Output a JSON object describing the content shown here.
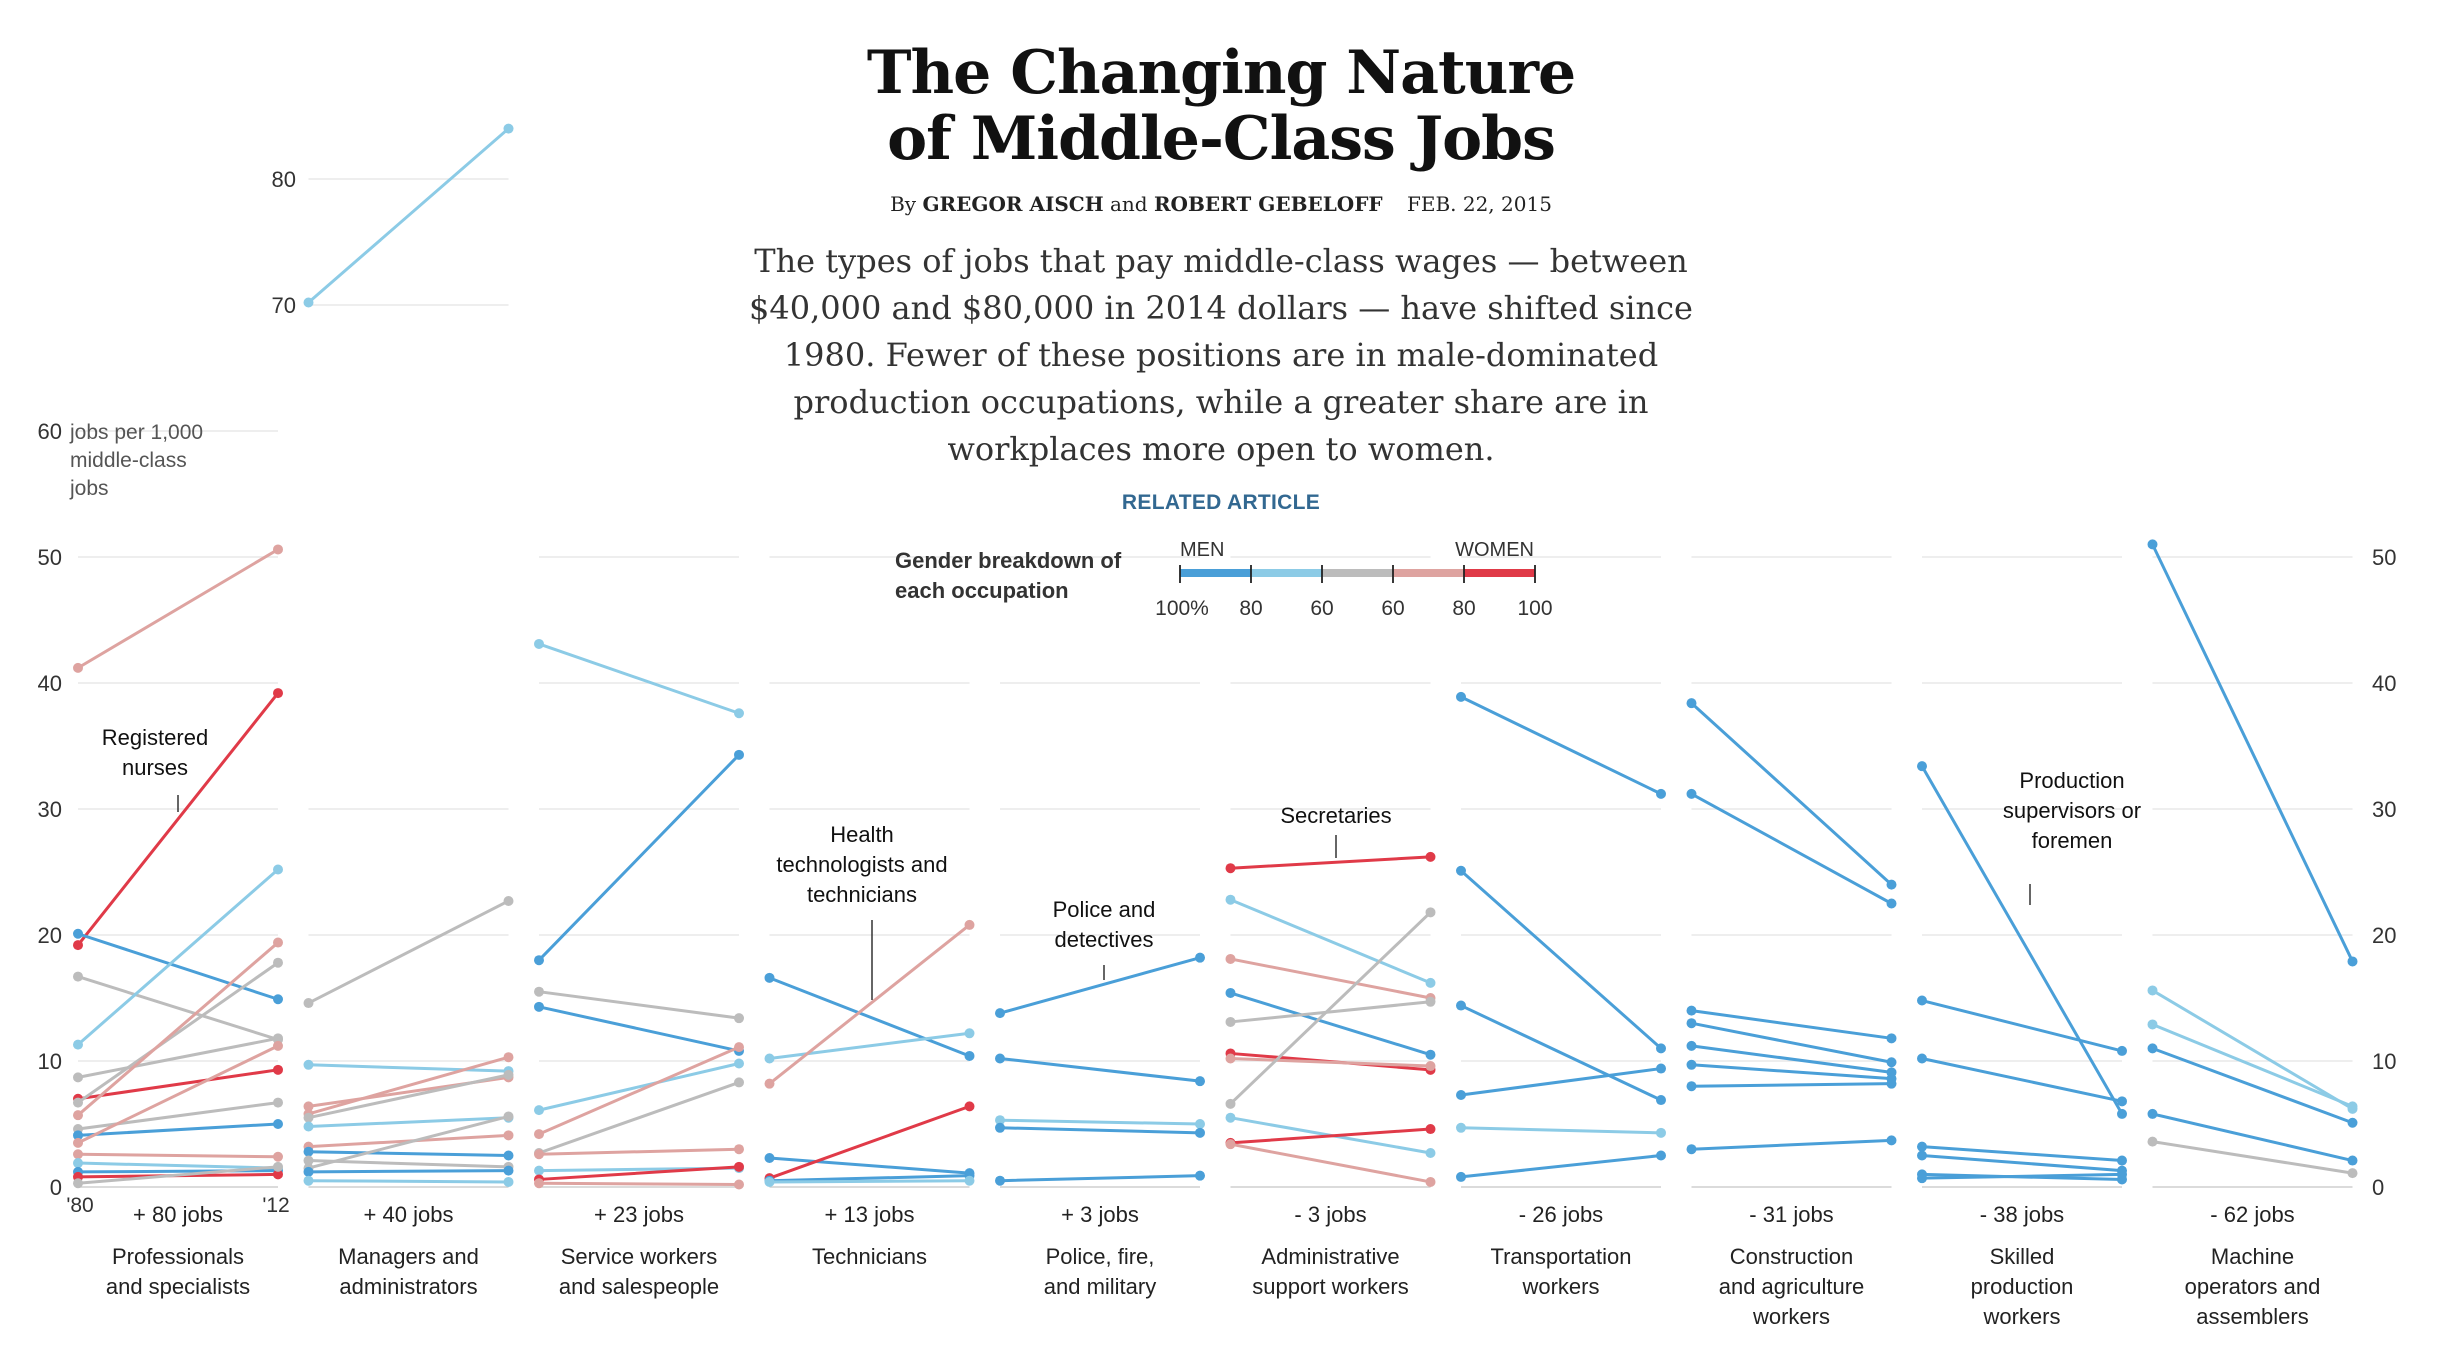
{
  "header": {
    "title_line1": "The Changing Nature",
    "title_line2": "of Middle-Class Jobs",
    "byline_prefix": "By",
    "author1": "GREGOR AISCH",
    "byline_and": "and",
    "author2": "ROBERT GEBELOFF",
    "date": "FEB. 22, 2015",
    "summary": "The types of jobs that pay middle-class wages — between $40,000 and $80,000 in 2014 dollars — have shifted since 1980. Fewer of these positions are in male-dominated production occupations, while a greater share are in workplaces more open to women.",
    "related_link": "RELATED ARTICLE"
  },
  "legend": {
    "title_line1": "Gender breakdown of",
    "title_line2": "each occupation",
    "men_label": "MEN",
    "women_label": "WOMEN",
    "ticks": [
      "100%",
      "80",
      "60",
      "60",
      "80",
      "100"
    ],
    "colors": [
      "#4a9fd8",
      "#8ccbe6",
      "#bcbcbc",
      "#dea3a0",
      "#e03a48"
    ]
  },
  "colors": {
    "men_strong": "#4a9fd8",
    "men_light": "#8ccbe6",
    "neutral": "#bcbcbc",
    "women_light": "#dea3a0",
    "women_strong": "#e03a48"
  },
  "chart_data": {
    "type": "line",
    "unit_label_lines": [
      "jobs per 1,000",
      "middle-class",
      "jobs"
    ],
    "x": [
      "'80",
      "'12"
    ],
    "ylim": [
      0,
      85
    ],
    "yticks_left": [
      "0",
      "10",
      "20",
      "30",
      "40",
      "50",
      "60",
      "70",
      "80"
    ],
    "yticks_right": [
      "0",
      "10",
      "20",
      "30",
      "40",
      "50"
    ],
    "grid": true,
    "panels": [
      {
        "name_lines": [
          "Professionals",
          "and specialists"
        ],
        "change": "+ 80 jobs",
        "series": [
          {
            "values": [
              41.2,
              50.6
            ],
            "gender": "women_light"
          },
          {
            "values": [
              19.2,
              39.2
            ],
            "gender": "women_strong"
          },
          {
            "values": [
              20.1,
              14.9
            ],
            "gender": "men_strong"
          },
          {
            "values": [
              16.7,
              11.7
            ],
            "gender": "neutral"
          },
          {
            "values": [
              11.3,
              25.2
            ],
            "gender": "men_light"
          },
          {
            "values": [
              8.7,
              11.8
            ],
            "gender": "neutral"
          },
          {
            "values": [
              7.0,
              9.3
            ],
            "gender": "women_strong"
          },
          {
            "values": [
              6.7,
              17.8
            ],
            "gender": "neutral"
          },
          {
            "values": [
              5.7,
              19.4
            ],
            "gender": "women_light"
          },
          {
            "values": [
              4.6,
              6.7
            ],
            "gender": "neutral"
          },
          {
            "values": [
              4.1,
              5.0
            ],
            "gender": "men_strong"
          },
          {
            "values": [
              3.5,
              11.2
            ],
            "gender": "women_light"
          },
          {
            "values": [
              2.6,
              2.4
            ],
            "gender": "women_light"
          },
          {
            "values": [
              1.9,
              1.5
            ],
            "gender": "men_light"
          },
          {
            "values": [
              1.2,
              1.3
            ],
            "gender": "men_strong"
          },
          {
            "values": [
              0.8,
              1.0
            ],
            "gender": "women_strong"
          },
          {
            "values": [
              0.3,
              1.6
            ],
            "gender": "neutral"
          }
        ],
        "annotation_lines": [
          "Registered",
          "nurses"
        ]
      },
      {
        "name_lines": [
          "Managers and",
          "administrators"
        ],
        "change": "+ 40 jobs",
        "series": [
          {
            "values": [
              70.2,
              84.0
            ],
            "gender": "men_light"
          },
          {
            "values": [
              14.6,
              22.7
            ],
            "gender": "neutral"
          },
          {
            "values": [
              9.7,
              9.2
            ],
            "gender": "men_light"
          },
          {
            "values": [
              6.4,
              8.7
            ],
            "gender": "women_light"
          },
          {
            "values": [
              5.8,
              10.3
            ],
            "gender": "women_light"
          },
          {
            "values": [
              5.5,
              8.9
            ],
            "gender": "neutral"
          },
          {
            "values": [
              4.8,
              5.5
            ],
            "gender": "men_light"
          },
          {
            "values": [
              3.2,
              4.1
            ],
            "gender": "women_light"
          },
          {
            "values": [
              2.8,
              2.5
            ],
            "gender": "men_strong"
          },
          {
            "values": [
              2.1,
              1.6
            ],
            "gender": "neutral"
          },
          {
            "values": [
              1.5,
              5.6
            ],
            "gender": "neutral"
          },
          {
            "values": [
              1.2,
              1.3
            ],
            "gender": "men_strong"
          },
          {
            "values": [
              0.5,
              0.4
            ],
            "gender": "men_light"
          }
        ]
      },
      {
        "name_lines": [
          "Service workers",
          "and salespeople"
        ],
        "change": "+ 23 jobs",
        "series": [
          {
            "values": [
              43.1,
              37.6
            ],
            "gender": "men_light"
          },
          {
            "values": [
              18.0,
              34.3
            ],
            "gender": "men_strong"
          },
          {
            "values": [
              15.5,
              13.4
            ],
            "gender": "neutral"
          },
          {
            "values": [
              14.3,
              10.8
            ],
            "gender": "men_strong"
          },
          {
            "values": [
              6.1,
              9.8
            ],
            "gender": "men_light"
          },
          {
            "values": [
              4.2,
              11.1
            ],
            "gender": "women_light"
          },
          {
            "values": [
              2.7,
              8.3
            ],
            "gender": "neutral"
          },
          {
            "values": [
              2.6,
              3.0
            ],
            "gender": "women_light"
          },
          {
            "values": [
              1.3,
              1.5
            ],
            "gender": "men_light"
          },
          {
            "values": [
              0.6,
              1.6
            ],
            "gender": "women_strong"
          },
          {
            "values": [
              0.3,
              0.2
            ],
            "gender": "women_light"
          }
        ]
      },
      {
        "name_lines": [
          "Technicians"
        ],
        "change": "+ 13 jobs",
        "series": [
          {
            "values": [
              16.6,
              10.4
            ],
            "gender": "men_strong"
          },
          {
            "values": [
              10.2,
              12.2
            ],
            "gender": "men_light"
          },
          {
            "values": [
              8.2,
              20.8
            ],
            "gender": "women_light"
          },
          {
            "values": [
              2.3,
              1.1
            ],
            "gender": "men_strong"
          },
          {
            "values": [
              0.7,
              6.4
            ],
            "gender": "women_strong"
          },
          {
            "values": [
              0.5,
              0.9
            ],
            "gender": "men_strong"
          },
          {
            "values": [
              0.4,
              0.5
            ],
            "gender": "men_light"
          }
        ],
        "annotation_lines": [
          "Health",
          "technologists and",
          "technicians"
        ]
      },
      {
        "name_lines": [
          "Police, fire,",
          "and military"
        ],
        "change": "+ 3 jobs",
        "series": [
          {
            "values": [
              13.8,
              18.2
            ],
            "gender": "men_strong"
          },
          {
            "values": [
              10.2,
              8.4
            ],
            "gender": "men_strong"
          },
          {
            "values": [
              5.3,
              5.0
            ],
            "gender": "men_light"
          },
          {
            "values": [
              4.7,
              4.3
            ],
            "gender": "men_strong"
          },
          {
            "values": [
              0.5,
              0.9
            ],
            "gender": "men_strong"
          }
        ],
        "annotation_lines": [
          "Police and",
          "detectives"
        ]
      },
      {
        "name_lines": [
          "Administrative",
          "support workers"
        ],
        "change": "- 3 jobs",
        "series": [
          {
            "values": [
              25.3,
              26.2
            ],
            "gender": "women_strong"
          },
          {
            "values": [
              22.8,
              16.2
            ],
            "gender": "men_light"
          },
          {
            "values": [
              18.1,
              15.0
            ],
            "gender": "women_light"
          },
          {
            "values": [
              15.4,
              10.5
            ],
            "gender": "men_strong"
          },
          {
            "values": [
              13.1,
              14.7
            ],
            "gender": "neutral"
          },
          {
            "values": [
              10.6,
              9.3
            ],
            "gender": "women_strong"
          },
          {
            "values": [
              10.2,
              9.6
            ],
            "gender": "women_light"
          },
          {
            "values": [
              6.6,
              21.8
            ],
            "gender": "neutral"
          },
          {
            "values": [
              5.5,
              2.7
            ],
            "gender": "men_light"
          },
          {
            "values": [
              3.5,
              4.6
            ],
            "gender": "women_strong"
          },
          {
            "values": [
              3.4,
              0.4
            ],
            "gender": "women_light"
          }
        ],
        "annotation_lines": [
          "Secretaries"
        ]
      },
      {
        "name_lines": [
          "Transportation",
          "workers"
        ],
        "change": "- 26 jobs",
        "series": [
          {
            "values": [
              38.9,
              31.2
            ],
            "gender": "men_strong"
          },
          {
            "values": [
              25.1,
              11.0
            ],
            "gender": "men_strong"
          },
          {
            "values": [
              14.4,
              6.9
            ],
            "gender": "men_strong"
          },
          {
            "values": [
              7.3,
              9.4
            ],
            "gender": "men_strong"
          },
          {
            "values": [
              4.7,
              4.3
            ],
            "gender": "men_light"
          },
          {
            "values": [
              0.8,
              2.5
            ],
            "gender": "men_strong"
          }
        ]
      },
      {
        "name_lines": [
          "Construction",
          "and agriculture",
          "workers"
        ],
        "change": "- 31 jobs",
        "series": [
          {
            "values": [
              38.4,
              24.0
            ],
            "gender": "men_strong"
          },
          {
            "values": [
              31.2,
              22.5
            ],
            "gender": "men_strong"
          },
          {
            "values": [
              14.0,
              11.8
            ],
            "gender": "men_strong"
          },
          {
            "values": [
              13.0,
              9.9
            ],
            "gender": "men_strong"
          },
          {
            "values": [
              11.2,
              9.1
            ],
            "gender": "men_strong"
          },
          {
            "values": [
              9.7,
              8.6
            ],
            "gender": "men_strong"
          },
          {
            "values": [
              8.0,
              8.2
            ],
            "gender": "men_strong"
          },
          {
            "values": [
              3.0,
              3.7
            ],
            "gender": "men_strong"
          }
        ]
      },
      {
        "name_lines": [
          "Skilled",
          "production",
          "workers"
        ],
        "change": "- 38 jobs",
        "series": [
          {
            "values": [
              33.4,
              5.8
            ],
            "gender": "men_strong"
          },
          {
            "values": [
              14.8,
              10.8
            ],
            "gender": "men_strong"
          },
          {
            "values": [
              10.2,
              6.8
            ],
            "gender": "men_strong"
          },
          {
            "values": [
              3.2,
              2.1
            ],
            "gender": "men_strong"
          },
          {
            "values": [
              2.5,
              1.3
            ],
            "gender": "men_strong"
          },
          {
            "values": [
              1.0,
              0.6
            ],
            "gender": "men_strong"
          },
          {
            "values": [
              0.7,
              1.0
            ],
            "gender": "men_strong"
          }
        ],
        "annotation_lines": [
          "Production",
          "supervisors or",
          "foremen"
        ]
      },
      {
        "name_lines": [
          "Machine",
          "operators and",
          "assemblers"
        ],
        "change": "- 62 jobs",
        "series": [
          {
            "values": [
              51.0,
              17.9
            ],
            "gender": "men_strong"
          },
          {
            "values": [
              15.6,
              6.2
            ],
            "gender": "men_light"
          },
          {
            "values": [
              12.9,
              6.4
            ],
            "gender": "men_light"
          },
          {
            "values": [
              11.0,
              5.1
            ],
            "gender": "men_strong"
          },
          {
            "values": [
              5.8,
              2.1
            ],
            "gender": "men_strong"
          },
          {
            "values": [
              3.6,
              1.1
            ],
            "gender": "neutral"
          }
        ]
      }
    ]
  }
}
